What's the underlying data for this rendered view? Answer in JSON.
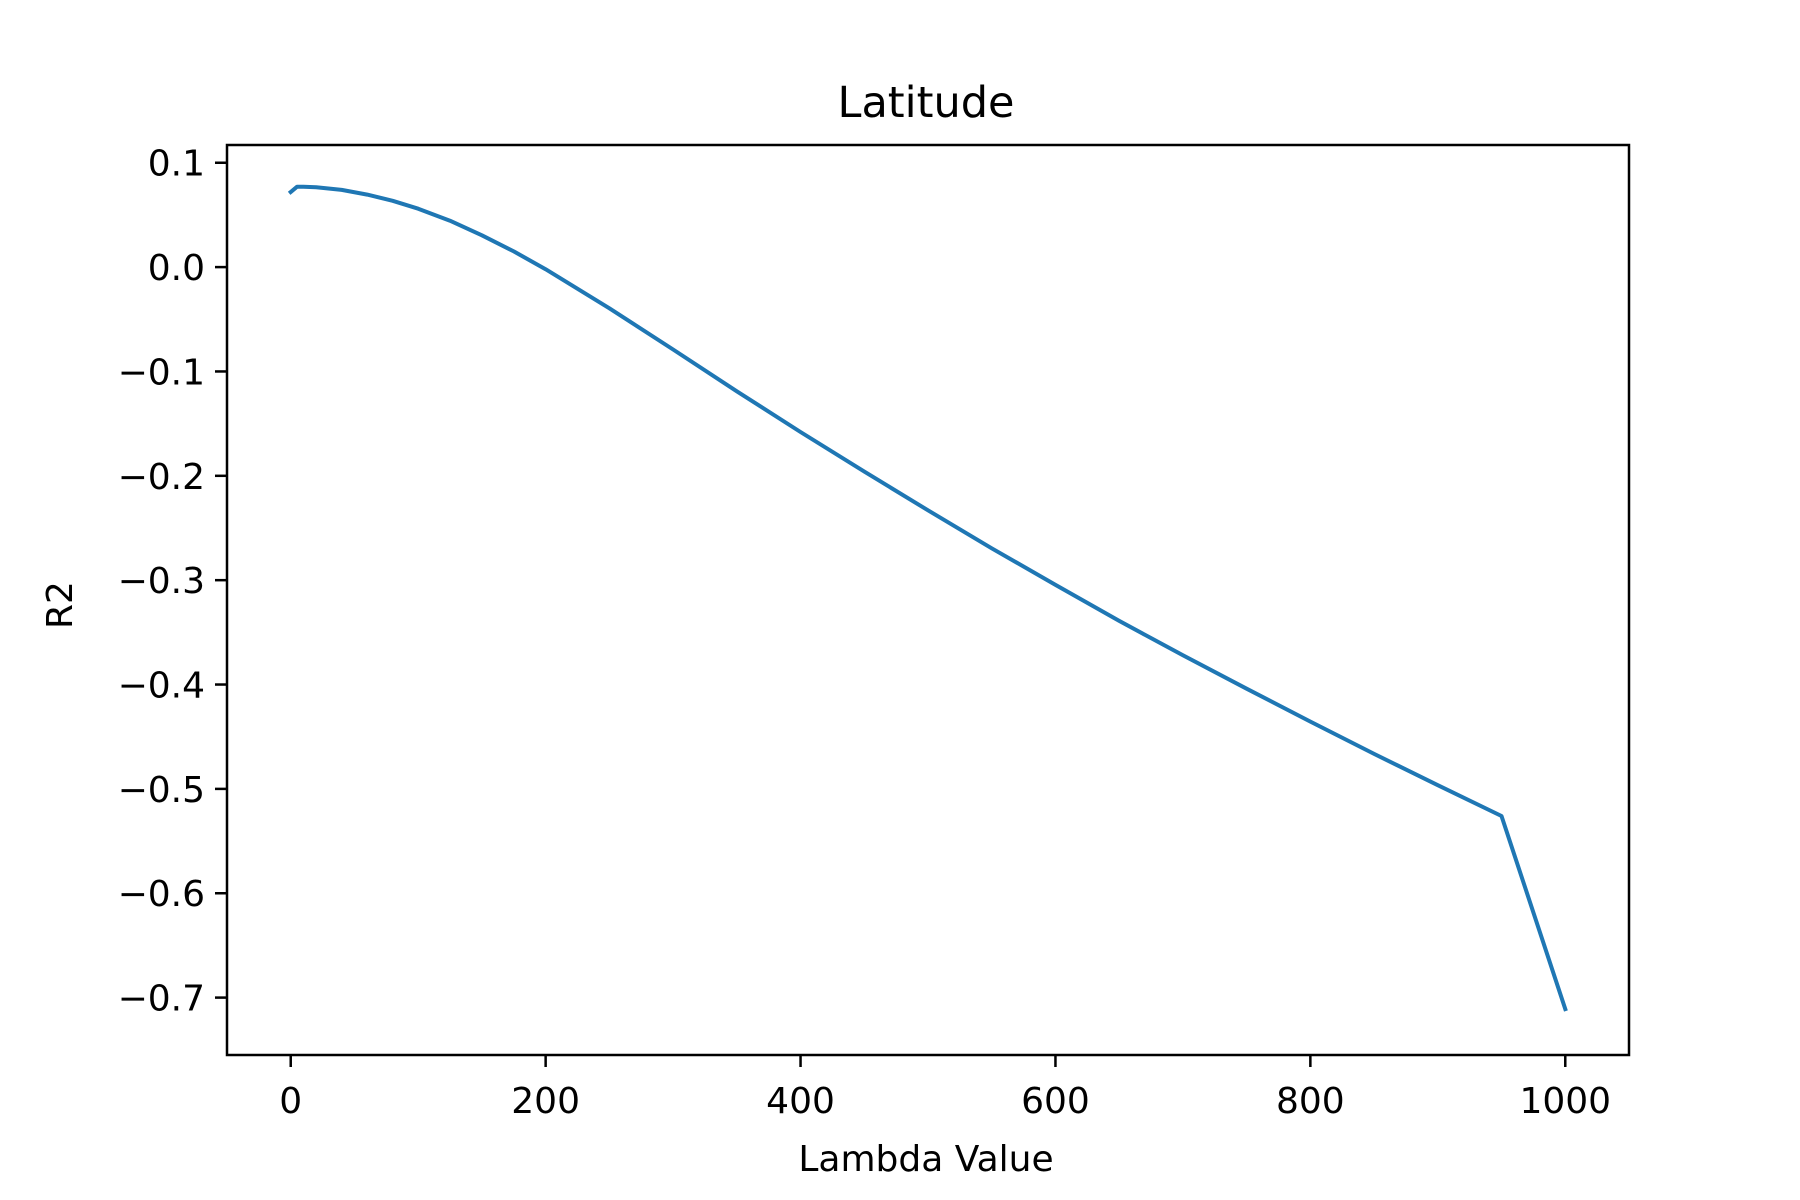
{
  "chart_data": {
    "type": "line",
    "title": "Latitude",
    "xlabel": "Lambda Value",
    "ylabel": "R2",
    "xlim": [
      -50,
      1050
    ],
    "ylim": [
      -0.755,
      0.117
    ],
    "xticks": [
      0,
      200,
      400,
      600,
      800,
      1000
    ],
    "xtick_labels": [
      "0",
      "200",
      "400",
      "600",
      "800",
      "1000"
    ],
    "yticks": [
      0.1,
      0.0,
      -0.1,
      -0.2,
      -0.3,
      -0.4,
      -0.5,
      -0.6,
      -0.7
    ],
    "ytick_labels": [
      "0.1",
      "0.0",
      "−0.1",
      "−0.2",
      "−0.3",
      "−0.4",
      "−0.5",
      "−0.6",
      "−0.7"
    ],
    "grid": false,
    "colors": {
      "series": "#1f77b4"
    },
    "series": [
      {
        "x": [
          0,
          5,
          10,
          20,
          40,
          60,
          80,
          100,
          125,
          150,
          175,
          200,
          250,
          300,
          350,
          400,
          450,
          500,
          550,
          600,
          650,
          700,
          750,
          800,
          850,
          900,
          950,
          1000
        ],
        "values": [
          0.072,
          0.077,
          0.077,
          0.0765,
          0.074,
          0.0695,
          0.0635,
          0.056,
          0.0445,
          0.0305,
          0.015,
          -0.002,
          -0.0395,
          -0.079,
          -0.119,
          -0.158,
          -0.196,
          -0.233,
          -0.2695,
          -0.3045,
          -0.339,
          -0.372,
          -0.404,
          -0.4355,
          -0.4665,
          -0.4965,
          -0.526,
          -0.711
        ]
      }
    ]
  }
}
